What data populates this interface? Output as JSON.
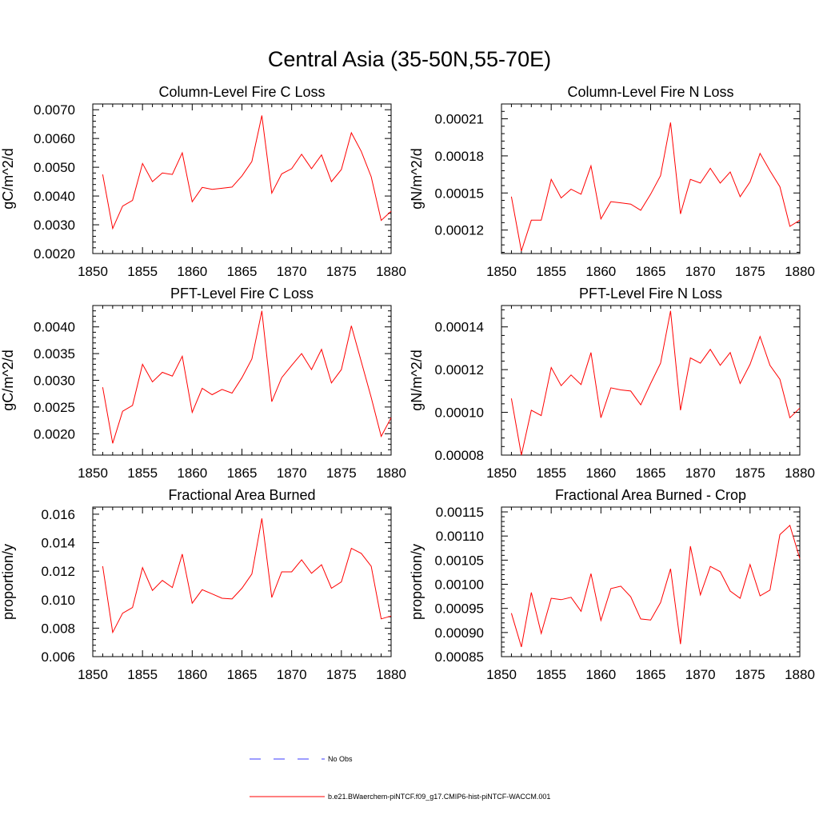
{
  "figure_title": "Central Asia (35-50N,55-70E)",
  "colors": {
    "model_line": "#ff0000",
    "obs_line": "#3b3bff",
    "axis": "#000000"
  },
  "legend": {
    "obs_label": "No Obs",
    "model_label": "b.e21.BWaerchem-piNTCF.f09_g17.CMIP6-hist-piNTCF-WACCM.001"
  },
  "chart_data": [
    {
      "type": "line",
      "title": "Column-Level Fire C Loss",
      "ylabel": "gC/m^2/d",
      "xlim": [
        1850,
        1880
      ],
      "ylim": [
        0.002,
        0.0072
      ],
      "xticks": [
        1850,
        1855,
        1860,
        1865,
        1870,
        1875,
        1880
      ],
      "yticks": [
        0.002,
        0.003,
        0.004,
        0.005,
        0.006,
        0.007
      ],
      "ytick_labels": [
        "0.0020",
        "0.0030",
        "0.0040",
        "0.0050",
        "0.0060",
        "0.0070"
      ],
      "x": [
        1851,
        1852,
        1853,
        1854,
        1855,
        1856,
        1857,
        1858,
        1859,
        1860,
        1861,
        1862,
        1863,
        1864,
        1865,
        1866,
        1867,
        1868,
        1869,
        1870,
        1871,
        1872,
        1873,
        1874,
        1875,
        1876,
        1877,
        1878,
        1879,
        1880
      ],
      "series": [
        {
          "values": [
            0.00475,
            0.00287,
            0.00365,
            0.00385,
            0.00513,
            0.0045,
            0.0048,
            0.00475,
            0.0055,
            0.0038,
            0.0043,
            0.00423,
            0.00427,
            0.00431,
            0.0047,
            0.0052,
            0.0068,
            0.0041,
            0.00477,
            0.00495,
            0.00545,
            0.00495,
            0.00543,
            0.0045,
            0.00492,
            0.0062,
            0.00555,
            0.00467,
            0.00315,
            0.00347
          ]
        }
      ]
    },
    {
      "type": "line",
      "title": "Column-Level Fire N Loss",
      "ylabel": "gN/m^2/d",
      "xlim": [
        1850,
        1880
      ],
      "ylim": [
        0.000101,
        0.000222
      ],
      "xticks": [
        1850,
        1855,
        1860,
        1865,
        1870,
        1875,
        1880
      ],
      "yticks": [
        0.00012,
        0.00015,
        0.00018,
        0.00021
      ],
      "ytick_labels": [
        "0.00012",
        "0.00015",
        "0.00018",
        "0.00021"
      ],
      "x": [
        1851,
        1852,
        1853,
        1854,
        1855,
        1856,
        1857,
        1858,
        1859,
        1860,
        1861,
        1862,
        1863,
        1864,
        1865,
        1866,
        1867,
        1868,
        1869,
        1870,
        1871,
        1872,
        1873,
        1874,
        1875,
        1876,
        1877,
        1878,
        1879,
        1880
      ],
      "series": [
        {
          "values": [
            0.000147,
            0.000103,
            0.000128,
            0.000128,
            0.000161,
            0.000146,
            0.000153,
            0.000149,
            0.000172,
            0.000129,
            0.000143,
            0.000142,
            0.000141,
            0.000136,
            0.000149,
            0.000164,
            0.000207,
            0.000133,
            0.000161,
            0.000158,
            0.00017,
            0.000158,
            0.000167,
            0.000147,
            0.000159,
            0.000182,
            0.000168,
            0.000155,
            0.000123,
            0.000128
          ]
        }
      ]
    },
    {
      "type": "line",
      "title": "PFT-Level Fire C Loss",
      "ylabel": "gC/m^2/d",
      "xlim": [
        1850,
        1880
      ],
      "ylim": [
        0.0016,
        0.0044
      ],
      "xticks": [
        1850,
        1855,
        1860,
        1865,
        1870,
        1875,
        1880
      ],
      "yticks": [
        0.002,
        0.0025,
        0.003,
        0.0035,
        0.004
      ],
      "ytick_labels": [
        "0.0020",
        "0.0025",
        "0.0030",
        "0.0035",
        "0.0040"
      ],
      "x": [
        1851,
        1852,
        1853,
        1854,
        1855,
        1856,
        1857,
        1858,
        1859,
        1860,
        1861,
        1862,
        1863,
        1864,
        1865,
        1866,
        1867,
        1868,
        1869,
        1870,
        1871,
        1872,
        1873,
        1874,
        1875,
        1876,
        1877,
        1878,
        1879,
        1880
      ],
      "series": [
        {
          "values": [
            0.00287,
            0.00182,
            0.00242,
            0.00253,
            0.0033,
            0.00297,
            0.00315,
            0.00308,
            0.00345,
            0.0024,
            0.00285,
            0.00273,
            0.00283,
            0.00276,
            0.00305,
            0.0034,
            0.0043,
            0.0026,
            0.00305,
            0.00328,
            0.0035,
            0.0032,
            0.00358,
            0.00295,
            0.0032,
            0.00402,
            0.00335,
            0.00268,
            0.00195,
            0.0023
          ]
        }
      ]
    },
    {
      "type": "line",
      "title": "PFT-Level Fire N Loss",
      "ylabel": "gN/m^2/d",
      "xlim": [
        1850,
        1880
      ],
      "ylim": [
        8e-05,
        0.00015
      ],
      "xticks": [
        1850,
        1855,
        1860,
        1865,
        1870,
        1875,
        1880
      ],
      "yticks": [
        8e-05,
        0.0001,
        0.00012,
        0.00014
      ],
      "ytick_labels": [
        "0.00008",
        "0.00010",
        "0.00012",
        "0.00014"
      ],
      "x": [
        1851,
        1852,
        1853,
        1854,
        1855,
        1856,
        1857,
        1858,
        1859,
        1860,
        1861,
        1862,
        1863,
        1864,
        1865,
        1866,
        1867,
        1868,
        1869,
        1870,
        1871,
        1872,
        1873,
        1874,
        1875,
        1876,
        1877,
        1878,
        1879,
        1880
      ],
      "series": [
        {
          "values": [
            0.0001065,
            8e-05,
            0.000101,
            9.85e-05,
            0.000121,
            0.0001125,
            0.0001175,
            0.000113,
            0.000128,
            9.75e-05,
            0.0001115,
            0.0001105,
            0.00011,
            0.0001035,
            0.0001135,
            0.000123,
            0.0001475,
            0.000101,
            0.0001255,
            0.000123,
            0.0001295,
            0.000122,
            0.000128,
            0.0001135,
            0.0001225,
            0.0001355,
            0.000122,
            0.0001155,
            9.75e-05,
            0.000102
          ]
        }
      ]
    },
    {
      "type": "line",
      "title": "Fractional Area Burned",
      "ylabel": "proportion/y",
      "xlim": [
        1850,
        1880
      ],
      "ylim": [
        0.006,
        0.0165
      ],
      "xticks": [
        1850,
        1855,
        1860,
        1865,
        1870,
        1875,
        1880
      ],
      "yticks": [
        0.006,
        0.008,
        0.01,
        0.012,
        0.014,
        0.016
      ],
      "ytick_labels": [
        "0.006",
        "0.008",
        "0.010",
        "0.012",
        "0.014",
        "0.016"
      ],
      "x": [
        1851,
        1852,
        1853,
        1854,
        1855,
        1856,
        1857,
        1858,
        1859,
        1860,
        1861,
        1862,
        1863,
        1864,
        1865,
        1866,
        1867,
        1868,
        1869,
        1870,
        1871,
        1872,
        1873,
        1874,
        1875,
        1876,
        1877,
        1878,
        1879,
        1880
      ],
      "series": [
        {
          "values": [
            0.01235,
            0.0077,
            0.00905,
            0.00945,
            0.01225,
            0.01065,
            0.01135,
            0.01085,
            0.0132,
            0.00975,
            0.0107,
            0.0104,
            0.0101,
            0.01005,
            0.0108,
            0.0118,
            0.0157,
            0.01015,
            0.01195,
            0.01195,
            0.0128,
            0.01185,
            0.01245,
            0.0108,
            0.01125,
            0.0136,
            0.01325,
            0.01235,
            0.00865,
            0.00885
          ]
        }
      ]
    },
    {
      "type": "line",
      "title": "Fractional Area Burned - Crop",
      "ylabel": "proportion/y",
      "xlim": [
        1850,
        1880
      ],
      "ylim": [
        0.00085,
        0.00116
      ],
      "xticks": [
        1850,
        1855,
        1860,
        1865,
        1870,
        1875,
        1880
      ],
      "yticks": [
        0.00085,
        0.0009,
        0.00095,
        0.001,
        0.00105,
        0.0011,
        0.00115
      ],
      "ytick_labels": [
        "0.00085",
        "0.00090",
        "0.00095",
        "0.00100",
        "0.00105",
        "0.00110",
        "0.00115"
      ],
      "x": [
        1851,
        1852,
        1853,
        1854,
        1855,
        1856,
        1857,
        1858,
        1859,
        1860,
        1861,
        1862,
        1863,
        1864,
        1865,
        1866,
        1867,
        1868,
        1869,
        1870,
        1871,
        1872,
        1873,
        1874,
        1875,
        1876,
        1877,
        1878,
        1879,
        1880
      ],
      "series": [
        {
          "values": [
            0.00094,
            0.00087,
            0.000983,
            0.000898,
            0.000971,
            0.000968,
            0.000973,
            0.000944,
            0.001022,
            0.000925,
            0.000991,
            0.000996,
            0.000974,
            0.000928,
            0.000926,
            0.000962,
            0.001032,
            0.000876,
            0.001079,
            0.000978,
            0.001037,
            0.001026,
            0.000986,
            0.000971,
            0.001041,
            0.000976,
            0.000988,
            0.001103,
            0.001122,
            0.001053
          ]
        }
      ]
    }
  ]
}
